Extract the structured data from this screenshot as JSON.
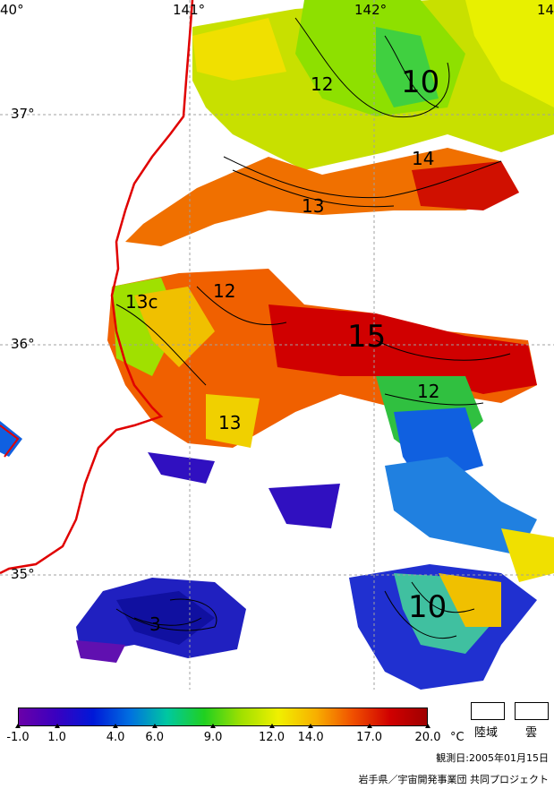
{
  "map": {
    "lat_labels": [
      "37°",
      "36°",
      "35°"
    ],
    "lon_labels": [
      "40°",
      "141°",
      "142°",
      "14"
    ],
    "contour_labels": [
      "10",
      "12",
      "14",
      "13",
      "12",
      "13c",
      "15",
      "12",
      "13",
      "10",
      "3"
    ]
  },
  "legend": {
    "ticks": [
      "-1.0",
      "1.0",
      "4.0",
      "6.0",
      "9.0",
      "12.0",
      "14.0",
      "17.0",
      "20.0"
    ],
    "unit": "°C",
    "colors": [
      "#6a00a8",
      "#3a00c0",
      "#0018d8",
      "#0070e0",
      "#00c8a0",
      "#20d020",
      "#a0e000",
      "#f0f000",
      "#f8b000",
      "#f05000",
      "#d00000",
      "#a00000"
    ],
    "land_label": "陸域",
    "cloud_label": "雲"
  },
  "footer": {
    "date_label": "観測日:2005年01月15日",
    "credit": "岩手県／宇宙開発事業団 共同プロジェクト"
  },
  "colors": {
    "coastline": "#e00000",
    "grid": "#a0a0a0"
  }
}
